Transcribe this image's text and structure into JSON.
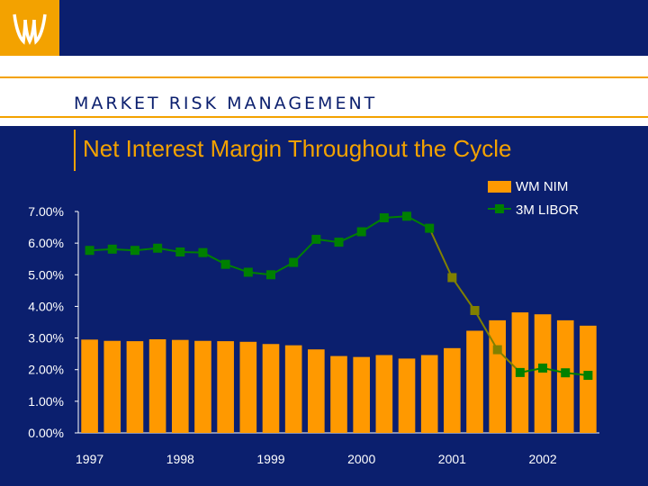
{
  "header": {
    "section_title": "MARKET RISK MANAGEMENT",
    "logo": "wm-logo-icon"
  },
  "colors": {
    "navy": "#0b1f6e",
    "gold": "#f3a200",
    "bar": "#ff9900",
    "libor_green": "#008000",
    "libor_olive": "#808000"
  },
  "chart_data": {
    "type": "bar",
    "title": "Net Interest Margin Throughout the Cycle",
    "xlabel": "",
    "ylabel": "",
    "ylim": [
      0,
      7
    ],
    "yticks": [
      "0.00%",
      "1.00%",
      "2.00%",
      "3.00%",
      "4.00%",
      "5.00%",
      "6.00%",
      "7.00%"
    ],
    "xtick_labels": [
      {
        "label": "1997",
        "index": 0
      },
      {
        "label": "1998",
        "index": 4
      },
      {
        "label": "1999",
        "index": 8
      },
      {
        "label": "2000",
        "index": 12
      },
      {
        "label": "2001",
        "index": 16
      },
      {
        "label": "2002",
        "index": 20
      }
    ],
    "legend_position": "top-right",
    "series": [
      {
        "name": "WM NIM",
        "type": "bar",
        "values": [
          2.95,
          2.91,
          2.9,
          2.96,
          2.94,
          2.91,
          2.9,
          2.88,
          2.81,
          2.77,
          2.64,
          2.43,
          2.4,
          2.46,
          2.35,
          2.46,
          2.68,
          3.23,
          3.56,
          3.81,
          3.75,
          3.56,
          3.39
        ]
      },
      {
        "name": "3M LIBOR",
        "type": "line",
        "values": [
          5.77,
          5.81,
          5.77,
          5.84,
          5.72,
          5.7,
          5.33,
          5.08,
          5.0,
          5.39,
          6.12,
          6.03,
          6.36,
          6.8,
          6.85,
          6.47,
          4.91,
          3.87,
          2.63,
          1.91,
          2.05,
          1.9,
          1.82
        ]
      }
    ]
  }
}
